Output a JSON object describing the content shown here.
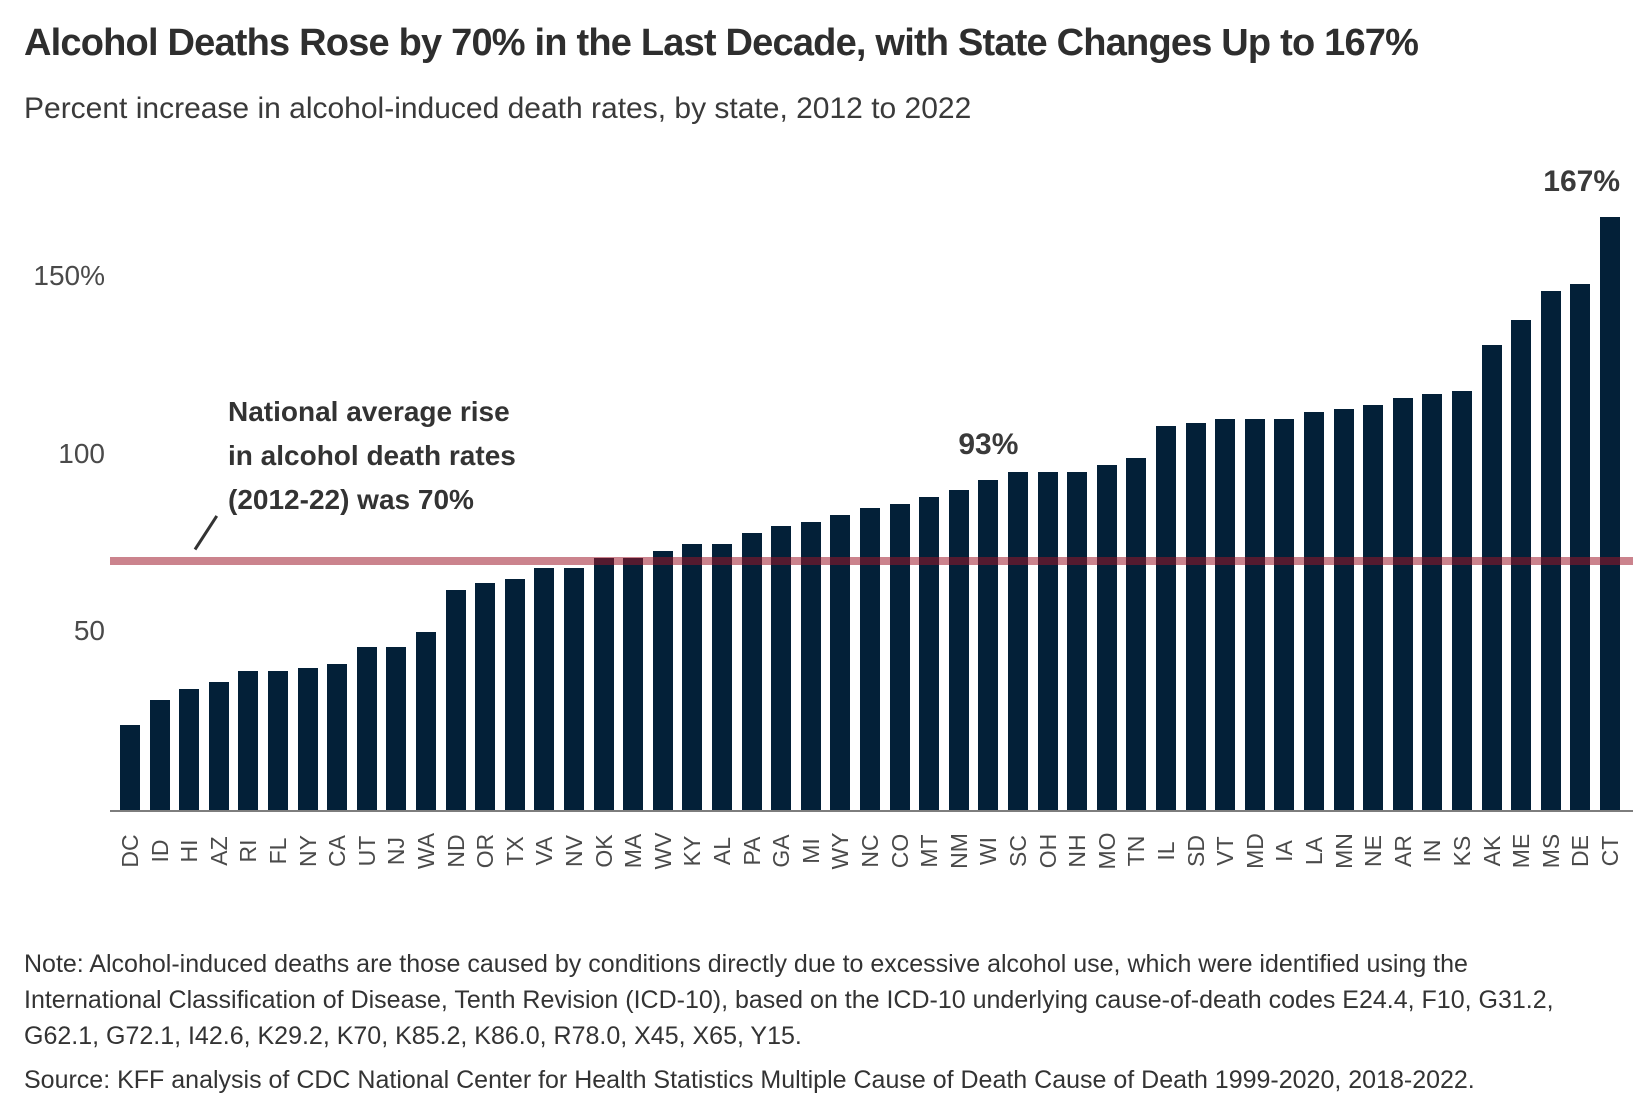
{
  "header": {
    "title": "Alcohol Deaths Rose by 70% in the Last Decade, with State Changes Up to 167%",
    "subtitle": "Percent increase in alcohol-induced death rates, by state, 2012 to 2022"
  },
  "chart_data": {
    "type": "bar",
    "title": "Alcohol Deaths Rose by 70% in the Last Decade, with State Changes Up to 167%",
    "subtitle": "Percent increase in alcohol-induced death rates, by state, 2012 to 2022",
    "categories": [
      "DC",
      "ID",
      "HI",
      "AZ",
      "RI",
      "FL",
      "NY",
      "CA",
      "UT",
      "NJ",
      "WA",
      "ND",
      "OR",
      "TX",
      "VA",
      "NV",
      "OK",
      "MA",
      "WV",
      "KY",
      "AL",
      "PA",
      "GA",
      "MI",
      "WY",
      "NC",
      "CO",
      "MT",
      "NM",
      "WI",
      "SC",
      "OH",
      "NH",
      "MO",
      "TN",
      "IL",
      "SD",
      "VT",
      "MD",
      "IA",
      "LA",
      "MN",
      "NE",
      "AR",
      "IN",
      "KS",
      "AK",
      "ME",
      "MS",
      "DE",
      "CT"
    ],
    "values": [
      24,
      31,
      34,
      36,
      39,
      39,
      40,
      41,
      46,
      46,
      50,
      62,
      64,
      65,
      68,
      68,
      71,
      71,
      73,
      75,
      75,
      78,
      80,
      81,
      83,
      85,
      86,
      88,
      90,
      93,
      95,
      95,
      95,
      97,
      99,
      108,
      109,
      110,
      110,
      110,
      112,
      113,
      114,
      116,
      117,
      118,
      131,
      138,
      146,
      148,
      167
    ],
    "ylabel": "",
    "xlabel": "",
    "ylim": [
      0,
      175
    ],
    "grid": false,
    "legend": "none",
    "yticks": [
      {
        "label": "150%",
        "value": 150
      },
      {
        "label": "100",
        "value": 100
      },
      {
        "label": "50",
        "value": 50
      }
    ],
    "bar_color": "#032038",
    "axis_line_color": "#7d7d7d",
    "reference_line": {
      "value": 70,
      "color": "rgba(156,21,39,0.53)",
      "annotation": [
        "National average rise",
        "in alcohol death rates",
        "(2012-22) was 70%"
      ]
    },
    "callouts": [
      {
        "label": "93%",
        "category": "WI",
        "align": "center"
      },
      {
        "label": "167%",
        "category": "CT",
        "align": "right"
      }
    ]
  },
  "footer": {
    "note_lines": [
      "Note: Alcohol-induced deaths are those caused by conditions directly due to excessive alcohol use, which were identified using the",
      "International Classification of Disease, Tenth Revision (ICD-10), based on the ICD-10 underlying cause-of-death codes E24.4, F10, G31.2,",
      "G62.1, G72.1, I42.6, K29.2, K70, K85.2, K86.0, R78.0, X45, X65, Y15."
    ],
    "source": "Source: KFF analysis of CDC National Center for Health Statistics Multiple Cause of Death Cause of Death 1999-2020, 2018-2022."
  }
}
